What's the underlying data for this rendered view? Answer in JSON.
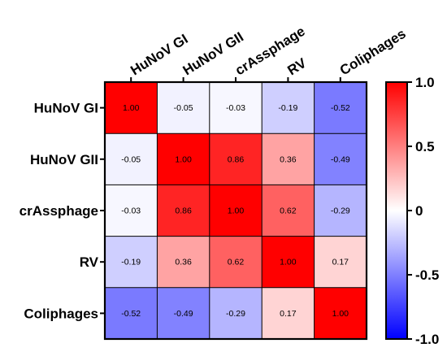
{
  "chart_data": {
    "type": "heatmap",
    "title": "",
    "row_labels": [
      "HuNoV GI",
      "HuNoV GII",
      "crAssphage",
      "RV",
      "Coliphages"
    ],
    "col_labels": [
      "HuNoV GI",
      "HuNoV GII",
      "crAssphage",
      "RV",
      "Coliphages"
    ],
    "values": [
      [
        1.0,
        -0.05,
        -0.03,
        -0.19,
        -0.52
      ],
      [
        -0.05,
        1.0,
        0.86,
        0.36,
        -0.49
      ],
      [
        -0.03,
        0.86,
        1.0,
        0.62,
        -0.29
      ],
      [
        -0.19,
        0.36,
        0.62,
        1.0,
        0.17
      ],
      [
        -0.52,
        -0.49,
        -0.29,
        0.17,
        1.0
      ]
    ],
    "value_labels": [
      [
        "1.00",
        "-0.05",
        "-0.03",
        "-0.19",
        "-0.52"
      ],
      [
        "-0.05",
        "1.00",
        "0.86",
        "0.36",
        "-0.49"
      ],
      [
        "-0.03",
        "0.86",
        "1.00",
        "0.62",
        "-0.29"
      ],
      [
        "-0.19",
        "0.36",
        "0.62",
        "1.00",
        "0.17"
      ],
      [
        "-0.52",
        "-0.49",
        "-0.29",
        "0.17",
        "1.00"
      ]
    ],
    "colorbar": {
      "range": [
        -1.0,
        1.0
      ],
      "ticks": [
        1.0,
        0.5,
        0,
        -0.5,
        -1.0
      ],
      "tick_labels": [
        "1.0",
        "0.5",
        "0",
        "-0.5",
        "-1.0"
      ],
      "colors": {
        "low": "#0000FF",
        "mid": "#FFFFFF",
        "high": "#FF0000"
      }
    }
  }
}
